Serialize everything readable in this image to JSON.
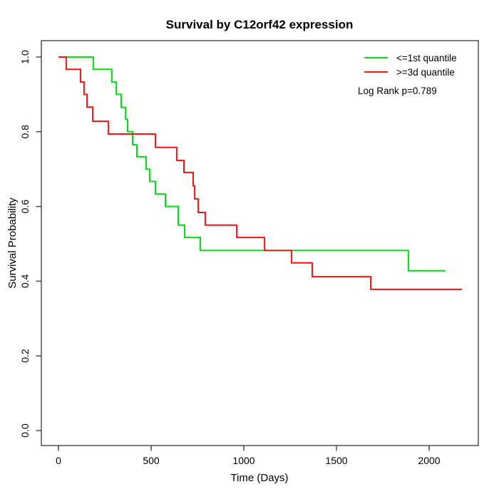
{
  "chart_data": {
    "type": "line",
    "subtype": "kaplan-meier-step",
    "title": "Survival by C12orf42 expression",
    "xlabel": "Time (Days)",
    "ylabel": "Survival Probability",
    "xlim": [
      0,
      2265
    ],
    "ylim": [
      0.0,
      1.0
    ],
    "x_ticks": [
      0,
      500,
      1000,
      1500,
      2000
    ],
    "y_ticks": [
      0.0,
      0.2,
      0.4,
      0.6,
      0.8,
      1.0
    ],
    "grid": false,
    "legend_position": "top-right",
    "annotation": "Log Rank p=0.789",
    "frame_color": "#333333",
    "series": [
      {
        "name": "<=1st quantile",
        "color": "#00dd14",
        "end_time": 2088,
        "points": [
          [
            0,
            1.0
          ],
          [
            188,
            0.967
          ],
          [
            288,
            0.933
          ],
          [
            312,
            0.9
          ],
          [
            338,
            0.865
          ],
          [
            362,
            0.833
          ],
          [
            373,
            0.8
          ],
          [
            400,
            0.765
          ],
          [
            423,
            0.733
          ],
          [
            473,
            0.7
          ],
          [
            492,
            0.667
          ],
          [
            523,
            0.633
          ],
          [
            577,
            0.6
          ],
          [
            646,
            0.55
          ],
          [
            681,
            0.517
          ],
          [
            765,
            0.482
          ],
          [
            1888,
            0.428
          ]
        ]
      },
      {
        "name": ">=3d quantile",
        "color": "#f01414",
        "end_time": 2177,
        "points": [
          [
            0,
            1.0
          ],
          [
            42,
            0.967
          ],
          [
            119,
            0.933
          ],
          [
            138,
            0.9
          ],
          [
            154,
            0.866
          ],
          [
            185,
            0.828
          ],
          [
            269,
            0.794
          ],
          [
            523,
            0.758
          ],
          [
            638,
            0.723
          ],
          [
            677,
            0.691
          ],
          [
            727,
            0.655
          ],
          [
            735,
            0.62
          ],
          [
            754,
            0.584
          ],
          [
            792,
            0.55
          ],
          [
            962,
            0.517
          ],
          [
            1112,
            0.482
          ],
          [
            1258,
            0.449
          ],
          [
            1369,
            0.412
          ],
          [
            1685,
            0.378
          ]
        ]
      }
    ]
  }
}
